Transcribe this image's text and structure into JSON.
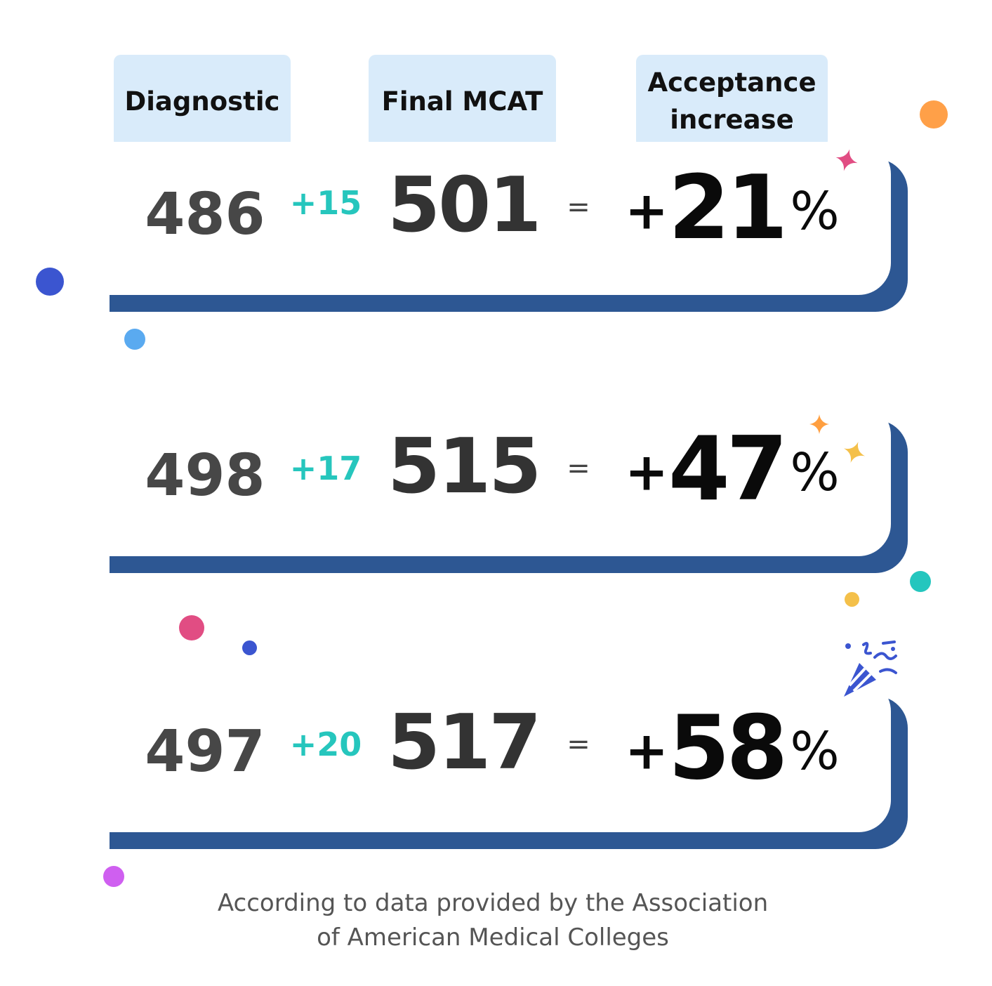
{
  "headers": {
    "diagnostic": "Diagnostic",
    "final_mcat": "Final MCAT",
    "acceptance_line1": "Acceptance",
    "acceptance_line2": "increase"
  },
  "rows": [
    {
      "diagnostic": "486",
      "gain": "+15",
      "final": "501",
      "equals": "=",
      "plus": "+",
      "increase": "21",
      "percent": "%"
    },
    {
      "diagnostic": "498",
      "gain": "+17",
      "final": "515",
      "equals": "=",
      "plus": "+",
      "increase": "47",
      "percent": "%"
    },
    {
      "diagnostic": "497",
      "gain": "+20",
      "final": "517",
      "equals": "=",
      "plus": "+",
      "increase": "58",
      "percent": "%"
    }
  ],
  "footer": {
    "line1": "According to data provided by the Association",
    "line2": "of American Medical Colleges"
  },
  "colors": {
    "header_bg": "#d9ebfa",
    "card_shadow": "#2d5793",
    "gain_text": "#26c6bd",
    "confetti_orange": "#ffa048",
    "confetti_pink": "#e14d83",
    "confetti_blue": "#3b55d0",
    "confetti_light_blue": "#5aaaf0",
    "confetti_teal": "#24c6be",
    "confetti_yellow": "#f4c04a",
    "confetti_purple": "#cf5ff0"
  },
  "icons": [
    "sparkle-icon",
    "party-popper-icon"
  ]
}
